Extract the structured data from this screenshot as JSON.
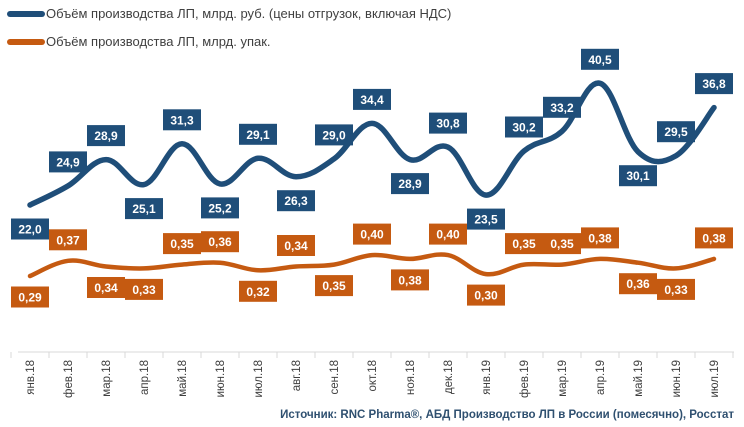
{
  "chart_data": {
    "type": "line",
    "categories": [
      "янв.18",
      "фев.18",
      "мар.18",
      "апр.18",
      "май.18",
      "июн.18",
      "июл.18",
      "авг.18",
      "сен.18",
      "окт.18",
      "ноя.18",
      "дек.18",
      "янв.19",
      "фев.19",
      "мар.19",
      "апр.19",
      "май.19",
      "июн.19",
      "июл.19"
    ],
    "series": [
      {
        "name": "Объём производства ЛП, млрд. руб. (цены отгрузок, включая НДС)",
        "color": "#1f4e79",
        "values": [
          22.0,
          24.9,
          28.9,
          25.1,
          31.3,
          25.2,
          29.1,
          26.3,
          29.0,
          34.4,
          28.9,
          30.8,
          23.5,
          30.2,
          33.2,
          40.5,
          30.1,
          29.5,
          36.8
        ],
        "labels": [
          "22,0",
          "24,9",
          "28,9",
          "25,1",
          "31,3",
          "25,2",
          "29,1",
          "26,3",
          "29,0",
          "34,4",
          "28,9",
          "30,8",
          "23,5",
          "30,2",
          "33,2",
          "40,5",
          "30,1",
          "29,5",
          "36,8"
        ]
      },
      {
        "name": "Объём производства ЛП, млрд. упак.",
        "color": "#c55a11",
        "values": [
          0.29,
          0.37,
          0.34,
          0.33,
          0.35,
          0.36,
          0.32,
          0.34,
          0.35,
          0.4,
          0.38,
          0.4,
          0.3,
          0.35,
          0.35,
          0.38,
          0.36,
          0.33,
          0.38
        ],
        "labels": [
          "0,29",
          "0,37",
          "0,34",
          "0,33",
          "0,35",
          "0,36",
          "0,32",
          "0,34",
          "0,35",
          "0,40",
          "0,38",
          "0,40",
          "0,30",
          "0,35",
          "0,35",
          "0,38",
          "0,36",
          "0,33",
          "0,38"
        ]
      }
    ],
    "legend": "top-left",
    "grid": false,
    "source": "Источник: RNC Pharma®, АБД Производство ЛП в России (помесячно), Росстат"
  }
}
